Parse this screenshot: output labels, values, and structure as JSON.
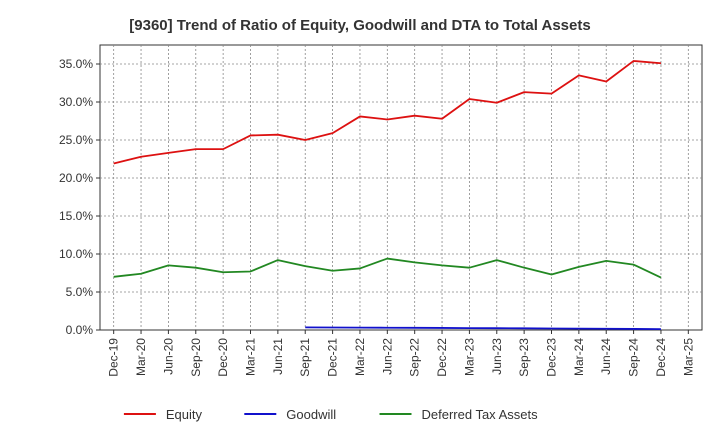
{
  "chart_data": {
    "type": "line",
    "title": "[9360]  Trend of Ratio of Equity, Goodwill and DTA to Total Assets",
    "xlabel": "",
    "ylabel": "",
    "ylim": [
      0,
      37.5
    ],
    "yticks": [
      0,
      5,
      10,
      15,
      20,
      25,
      30,
      35
    ],
    "yticklabels": [
      "0.0%",
      "5.0%",
      "10.0%",
      "15.0%",
      "20.0%",
      "25.0%",
      "30.0%",
      "35.0%"
    ],
    "grid": true,
    "legend_position": "bottom",
    "x": [
      "Dec-19",
      "Mar-20",
      "Jun-20",
      "Sep-20",
      "Dec-20",
      "Mar-21",
      "Jun-21",
      "Sep-21",
      "Dec-21",
      "Mar-22",
      "Jun-22",
      "Sep-22",
      "Dec-22",
      "Mar-23",
      "Jun-23",
      "Sep-23",
      "Dec-23",
      "Mar-24",
      "Jun-24",
      "Sep-24",
      "Dec-24",
      "Mar-25"
    ],
    "series": [
      {
        "name": "Equity",
        "color": "#dd1111",
        "values": [
          21.9,
          22.8,
          23.3,
          23.8,
          23.8,
          25.6,
          25.7,
          25.0,
          25.9,
          28.1,
          27.7,
          28.2,
          27.8,
          30.4,
          29.9,
          31.3,
          31.1,
          33.5,
          32.7,
          35.4,
          35.1,
          null
        ]
      },
      {
        "name": "Goodwill",
        "color": "#1111cc",
        "values": [
          null,
          null,
          null,
          null,
          null,
          null,
          null,
          0.35,
          0.33,
          0.31,
          0.3,
          0.29,
          0.27,
          0.25,
          0.24,
          0.22,
          0.2,
          0.18,
          0.16,
          0.14,
          0.12,
          null
        ]
      },
      {
        "name": "Deferred Tax Assets",
        "color": "#228822",
        "values": [
          7.0,
          7.4,
          8.5,
          8.2,
          7.6,
          7.7,
          9.2,
          8.4,
          7.8,
          8.1,
          9.4,
          8.9,
          8.5,
          8.2,
          9.2,
          8.2,
          7.3,
          8.3,
          9.1,
          8.6,
          6.9,
          null
        ]
      }
    ]
  }
}
